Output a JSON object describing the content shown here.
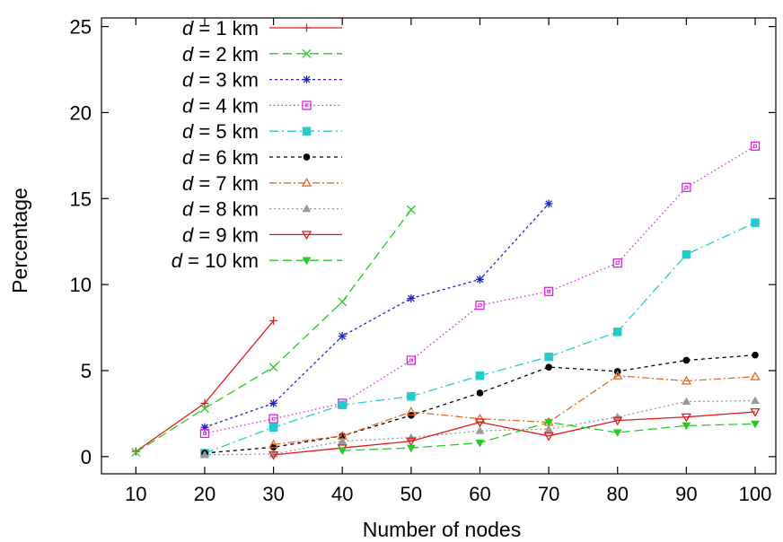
{
  "chart_data": {
    "type": "line",
    "xlabel": "Number of nodes",
    "ylabel": "Percentage",
    "xlim": [
      5,
      103
    ],
    "ylim": [
      -1,
      25.5
    ],
    "xticks": [
      10,
      20,
      30,
      40,
      50,
      60,
      70,
      80,
      90,
      100
    ],
    "yticks": [
      0,
      5,
      10,
      15,
      20,
      25
    ],
    "grid": false,
    "legend_position": "top-left",
    "series": [
      {
        "name": "d = 1 km",
        "var": "d",
        "rest": " = 1 km",
        "color": "#e41a1c",
        "dash": "",
        "marker": "plus",
        "x": [
          10,
          20,
          30
        ],
        "y": [
          0.3,
          3.1,
          7.9
        ]
      },
      {
        "name": "d = 2 km",
        "var": "d",
        "rest": " = 2 km",
        "color": "#22cc22",
        "dash": "10,5",
        "marker": "x",
        "x": [
          10,
          20,
          30,
          40,
          50
        ],
        "y": [
          0.25,
          2.8,
          5.2,
          9.0,
          14.35
        ]
      },
      {
        "name": "d = 3 km",
        "var": "d",
        "rest": " = 3 km",
        "color": "#2222cc",
        "dash": "3,3",
        "marker": "star",
        "x": [
          20,
          30,
          40,
          50,
          60,
          70
        ],
        "y": [
          1.7,
          3.1,
          7.0,
          9.2,
          10.3,
          14.7
        ]
      },
      {
        "name": "d = 4 km",
        "var": "d",
        "rest": " = 4 km",
        "color": "#dd22dd",
        "dash": "1.5,3",
        "marker": "square-dot",
        "x": [
          20,
          30,
          40,
          50,
          60,
          70,
          80,
          90,
          100
        ],
        "y": [
          1.35,
          2.2,
          3.1,
          5.6,
          8.8,
          9.6,
          11.25,
          15.65,
          18.05
        ]
      },
      {
        "name": "d = 5 km",
        "var": "d",
        "rest": " = 5 km",
        "color": "#22cccc",
        "dash": "10,4,2,4",
        "marker": "square",
        "x": [
          20,
          30,
          40,
          50,
          60,
          70,
          80,
          90,
          100
        ],
        "y": [
          0.2,
          1.7,
          3.0,
          3.5,
          4.7,
          5.8,
          7.25,
          11.75,
          13.6
        ]
      },
      {
        "name": "d = 6 km",
        "var": "d",
        "rest": " = 6 km",
        "color": "#000000",
        "dash": "4,4",
        "marker": "circle",
        "x": [
          20,
          30,
          40,
          50,
          60,
          70,
          80,
          90,
          100
        ],
        "y": [
          0.2,
          0.55,
          1.2,
          2.4,
          3.7,
          5.2,
          4.95,
          5.6,
          5.9
        ]
      },
      {
        "name": "d = 7 km",
        "var": "d",
        "rest": " = 7 km",
        "color": "#ee6622",
        "dash": "8,3,2,3",
        "marker": "triangle-open",
        "x": [
          30,
          40,
          50,
          60,
          70,
          80,
          90,
          100
        ],
        "y": [
          0.7,
          1.2,
          2.6,
          2.2,
          2.0,
          4.7,
          4.4,
          4.65
        ]
      },
      {
        "name": "d = 8 km",
        "var": "d",
        "rest": " = 8 km",
        "color": "#999999",
        "dash": "2,3",
        "marker": "triangle",
        "x": [
          20,
          30,
          40,
          50,
          60,
          70,
          80,
          90,
          100
        ],
        "y": [
          0.1,
          0.15,
          0.9,
          1.1,
          1.5,
          1.6,
          2.3,
          3.2,
          3.25
        ]
      },
      {
        "name": "d = 9 km",
        "var": "d",
        "rest": " = 9 km",
        "color": "#e41a1c",
        "dash": "",
        "marker": "triangle-down-open",
        "x": [
          30,
          40,
          50,
          60,
          70,
          80,
          90,
          100
        ],
        "y": [
          0.1,
          0.5,
          0.9,
          2.0,
          1.2,
          2.1,
          2.3,
          2.6
        ]
      },
      {
        "name": "d = 10 km",
        "var": "d",
        "rest": " = 10 km",
        "color": "#22cc22",
        "dash": "10,5",
        "marker": "triangle-down",
        "x": [
          40,
          50,
          60,
          70,
          80,
          90,
          100
        ],
        "y": [
          0.35,
          0.5,
          0.8,
          2.0,
          1.4,
          1.8,
          1.9
        ]
      }
    ]
  }
}
